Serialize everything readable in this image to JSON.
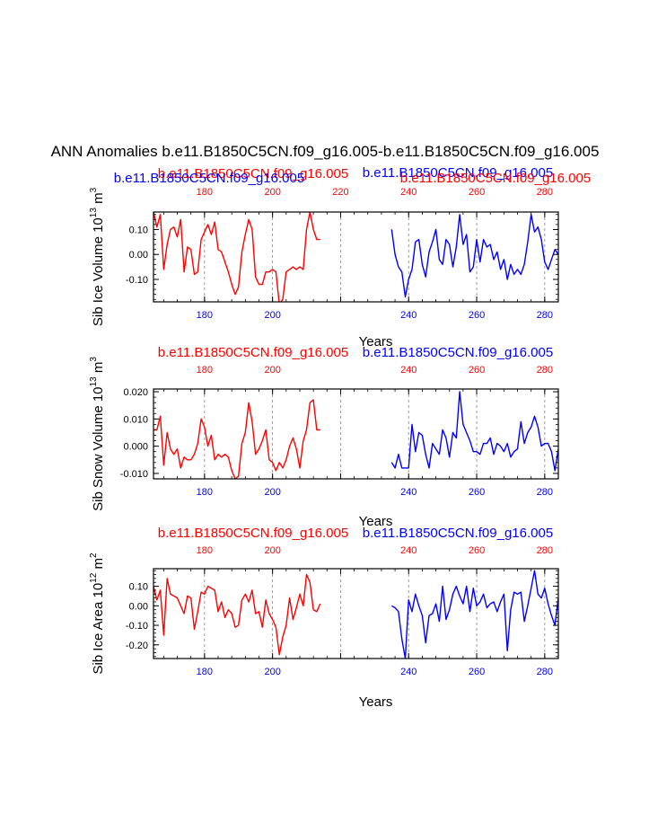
{
  "figure": {
    "title": "ANN Anomalies b.e11.B1850C5CN.f09_g16.005-b.e11.B1850C5CN.f09_g16.005"
  },
  "colors": {
    "case_a": "#ff0000",
    "case_b": "#0000ff",
    "axis": "#000000",
    "grid": "#808080"
  },
  "chart_data": [
    {
      "type": "line",
      "ylabel": "Sib Ice Volume 10",
      "ylabel_exp": "13",
      "ylabel_unit": " m",
      "ylabel_unit_exp": "3",
      "xlabel": "Years",
      "xlim": [
        165,
        284
      ],
      "ylim": [
        -0.19,
        0.17
      ],
      "yticks": [
        0.1,
        0.0,
        -0.1
      ],
      "ytick_labels": [
        "0.10",
        "0.00",
        "-0.10"
      ],
      "xticks": [
        180,
        200,
        220,
        240,
        260,
        280
      ],
      "xtick_labels_bottom": [
        "180",
        "200",
        "",
        "240",
        "260",
        "280"
      ],
      "xtick_labels_top": [
        "180",
        "200",
        "220",
        "240",
        "260",
        "280"
      ],
      "vlines": [
        180,
        200,
        220,
        240,
        260,
        280
      ],
      "series": [
        {
          "name": "b.e11.B1850C5CN.f09_g16.005",
          "color": "#ff0000",
          "x": [
            165,
            166,
            167,
            168,
            169,
            170,
            171,
            172,
            173,
            174,
            175,
            176,
            177,
            178,
            179,
            180,
            181,
            182,
            183,
            184,
            185,
            186,
            187,
            188,
            189,
            190,
            191,
            192,
            193,
            194,
            195,
            196,
            197,
            198,
            199,
            200,
            201,
            202,
            203,
            204,
            205,
            206,
            207,
            208,
            209,
            210,
            211,
            212,
            213,
            214
          ],
          "values": [
            0.17,
            0.11,
            0.16,
            -0.06,
            0.04,
            0.1,
            0.11,
            0.07,
            0.14,
            -0.07,
            0.03,
            0.02,
            -0.08,
            -0.07,
            0.06,
            0.09,
            0.12,
            0.08,
            0.13,
            0.02,
            0.01,
            -0.03,
            -0.07,
            -0.12,
            -0.16,
            -0.13,
            0.01,
            0.08,
            0.14,
            0.1,
            -0.09,
            -0.12,
            -0.12,
            -0.07,
            -0.07,
            -0.06,
            -0.07,
            -0.2,
            -0.18,
            -0.07,
            -0.06,
            -0.05,
            -0.06,
            -0.05,
            -0.06,
            0.1,
            0.17,
            0.1,
            0.06,
            0.06
          ]
        },
        {
          "name": "b.e11.B1850C5CN.f09_g16.005",
          "color": "#0000ff",
          "x": [
            235,
            236,
            237,
            238,
            239,
            240,
            241,
            242,
            243,
            244,
            245,
            246,
            247,
            248,
            249,
            250,
            251,
            252,
            253,
            254,
            255,
            256,
            257,
            258,
            259,
            260,
            261,
            262,
            263,
            264,
            265,
            266,
            267,
            268,
            269,
            270,
            271,
            272,
            273,
            274,
            275,
            276,
            277,
            278,
            279,
            280,
            281,
            282,
            283,
            284
          ],
          "values": [
            0.1,
            0.0,
            -0.05,
            -0.07,
            -0.17,
            -0.1,
            -0.06,
            0.05,
            0.06,
            -0.04,
            -0.09,
            0.01,
            0.05,
            0.1,
            -0.02,
            -0.04,
            0.06,
            0.04,
            -0.05,
            0.03,
            0.16,
            0.04,
            0.08,
            -0.07,
            -0.05,
            0.06,
            -0.03,
            0.06,
            0.03,
            0.04,
            -0.02,
            0.01,
            -0.06,
            -0.02,
            -0.1,
            -0.04,
            -0.08,
            -0.06,
            -0.08,
            -0.04,
            0.05,
            0.16,
            0.09,
            0.11,
            0.06,
            -0.03,
            -0.06,
            -0.02,
            0.02,
            0.0
          ]
        }
      ]
    },
    {
      "type": "line",
      "ylabel": "Sib Snow Volume 10",
      "ylabel_exp": "13",
      "ylabel_unit": " m",
      "ylabel_unit_exp": "3",
      "xlabel": "Years",
      "xlim": [
        165,
        284
      ],
      "ylim": [
        -0.012,
        0.021
      ],
      "yticks": [
        0.02,
        0.01,
        0.0,
        -0.01
      ],
      "ytick_labels": [
        "0.020",
        "0.010",
        "0.000",
        "-0.010"
      ],
      "xticks": [
        180,
        200,
        220,
        240,
        260,
        280
      ],
      "xtick_labels_bottom": [
        "180",
        "200",
        "",
        "240",
        "260",
        "280"
      ],
      "xtick_labels_top": [
        "180",
        "200",
        "",
        "240",
        "260",
        "280"
      ],
      "vlines": [
        180,
        200,
        220,
        240,
        260,
        280
      ],
      "series": [
        {
          "name": "b.e11.B1850C5CN.f09_g16.005",
          "color": "#ff0000",
          "x": [
            165,
            166,
            167,
            168,
            169,
            170,
            171,
            172,
            173,
            174,
            175,
            176,
            177,
            178,
            179,
            180,
            181,
            182,
            183,
            184,
            185,
            186,
            187,
            188,
            189,
            190,
            191,
            192,
            193,
            194,
            195,
            196,
            197,
            198,
            199,
            200,
            201,
            202,
            203,
            204,
            205,
            206,
            207,
            208,
            209,
            210,
            211,
            212,
            213,
            214
          ],
          "values": [
            0.006,
            0.006,
            0.011,
            -0.007,
            0.005,
            -0.001,
            -0.003,
            -0.001,
            -0.008,
            -0.004,
            -0.005,
            -0.005,
            -0.003,
            0.001,
            0.01,
            0.007,
            0.0,
            0.004,
            -0.005,
            -0.003,
            -0.004,
            -0.003,
            -0.004,
            -0.009,
            -0.012,
            -0.011,
            0.001,
            0.005,
            0.016,
            0.009,
            -0.003,
            -0.001,
            0.002,
            0.006,
            -0.005,
            -0.006,
            -0.009,
            -0.006,
            -0.008,
            -0.005,
            0.0,
            0.003,
            -0.001,
            -0.008,
            0.002,
            0.006,
            0.016,
            0.017,
            0.006,
            0.006
          ]
        },
        {
          "name": "b.e11.B1850C5CN.f09_g16.005",
          "color": "#0000ff",
          "x": [
            235,
            236,
            237,
            238,
            239,
            240,
            241,
            242,
            243,
            244,
            245,
            246,
            247,
            248,
            249,
            250,
            251,
            252,
            253,
            254,
            255,
            256,
            257,
            258,
            259,
            260,
            261,
            262,
            263,
            264,
            265,
            266,
            267,
            268,
            269,
            270,
            271,
            272,
            273,
            274,
            275,
            276,
            277,
            278,
            279,
            280,
            281,
            282,
            283,
            284
          ],
          "values": [
            -0.006,
            -0.008,
            -0.003,
            -0.008,
            -0.008,
            -0.008,
            0.008,
            -0.002,
            0.005,
            0.004,
            -0.003,
            -0.008,
            0.001,
            -0.001,
            -0.003,
            0.006,
            0.003,
            -0.004,
            0.005,
            0.003,
            0.02,
            0.008,
            0.005,
            0.002,
            -0.002,
            -0.002,
            -0.003,
            0.001,
            0.001,
            0.003,
            -0.003,
            0.001,
            0.0,
            -0.002,
            0.001,
            -0.004,
            -0.002,
            -0.001,
            0.009,
            0.001,
            0.005,
            0.007,
            0.011,
            0.007,
            0.0,
            0.001,
            0.001,
            -0.002,
            -0.009,
            -0.001
          ]
        }
      ]
    },
    {
      "type": "line",
      "ylabel": "Sib Ice Area 10",
      "ylabel_exp": "12",
      "ylabel_unit": " m",
      "ylabel_unit_exp": "2",
      "xlabel": "Years",
      "xlim": [
        165,
        284
      ],
      "ylim": [
        -0.27,
        0.19
      ],
      "yticks": [
        0.1,
        0.0,
        -0.1,
        -0.2
      ],
      "ytick_labels": [
        "0.10",
        "0.00",
        "-0.10",
        "-0.20"
      ],
      "xticks": [
        180,
        200,
        220,
        240,
        260,
        280
      ],
      "xtick_labels_bottom": [
        "180",
        "200",
        "",
        "240",
        "260",
        "280"
      ],
      "xtick_labels_top": [
        "180",
        "200",
        "",
        "240",
        "260",
        "280"
      ],
      "vlines": [
        180,
        200,
        220,
        240,
        260,
        280
      ],
      "series": [
        {
          "name": "b.e11.B1850C5CN.f09_g16.005",
          "color": "#ff0000",
          "x": [
            165,
            166,
            167,
            168,
            169,
            170,
            171,
            172,
            173,
            174,
            175,
            176,
            177,
            178,
            179,
            180,
            181,
            182,
            183,
            184,
            185,
            186,
            187,
            188,
            189,
            190,
            191,
            192,
            193,
            194,
            195,
            196,
            197,
            198,
            199,
            200,
            201,
            202,
            203,
            204,
            205,
            206,
            207,
            208,
            209,
            210,
            211,
            212,
            213,
            214
          ],
          "values": [
            0.1,
            0.03,
            0.08,
            -0.15,
            0.14,
            0.06,
            0.05,
            0.04,
            0.0,
            -0.04,
            0.05,
            0.04,
            -0.12,
            -0.03,
            0.07,
            0.06,
            0.1,
            0.09,
            0.08,
            -0.03,
            0.02,
            -0.06,
            -0.02,
            -0.04,
            -0.11,
            -0.1,
            0.03,
            0.06,
            0.02,
            0.08,
            -0.04,
            -0.03,
            -0.11,
            0.03,
            -0.04,
            -0.07,
            -0.11,
            -0.25,
            -0.16,
            -0.1,
            0.04,
            -0.07,
            -0.01,
            0.06,
            0.0,
            0.16,
            0.12,
            -0.02,
            -0.03,
            0.01
          ]
        },
        {
          "name": "b.e11.B1850C5CN.f09_g16.005",
          "color": "#0000ff",
          "x": [
            235,
            236,
            237,
            238,
            239,
            240,
            241,
            242,
            243,
            244,
            245,
            246,
            247,
            248,
            249,
            250,
            251,
            252,
            253,
            254,
            255,
            256,
            257,
            258,
            259,
            260,
            261,
            262,
            263,
            264,
            265,
            266,
            267,
            268,
            269,
            270,
            271,
            272,
            273,
            274,
            275,
            276,
            277,
            278,
            279,
            280,
            281,
            282,
            283,
            284
          ],
          "values": [
            0.0,
            -0.01,
            -0.03,
            -0.17,
            -0.27,
            0.03,
            -0.03,
            0.06,
            0.0,
            -0.05,
            -0.19,
            -0.05,
            -0.04,
            0.01,
            -0.08,
            0.1,
            -0.07,
            -0.02,
            0.06,
            0.1,
            0.05,
            0.01,
            0.1,
            -0.03,
            0.09,
            0.0,
            0.02,
            0.06,
            -0.01,
            0.01,
            0.02,
            -0.03,
            0.02,
            0.06,
            -0.23,
            -0.02,
            0.07,
            0.06,
            0.07,
            -0.08,
            0.0,
            0.09,
            0.18,
            0.06,
            0.04,
            0.09,
            0.01,
            -0.05,
            -0.1,
            0.04
          ]
        }
      ]
    }
  ]
}
